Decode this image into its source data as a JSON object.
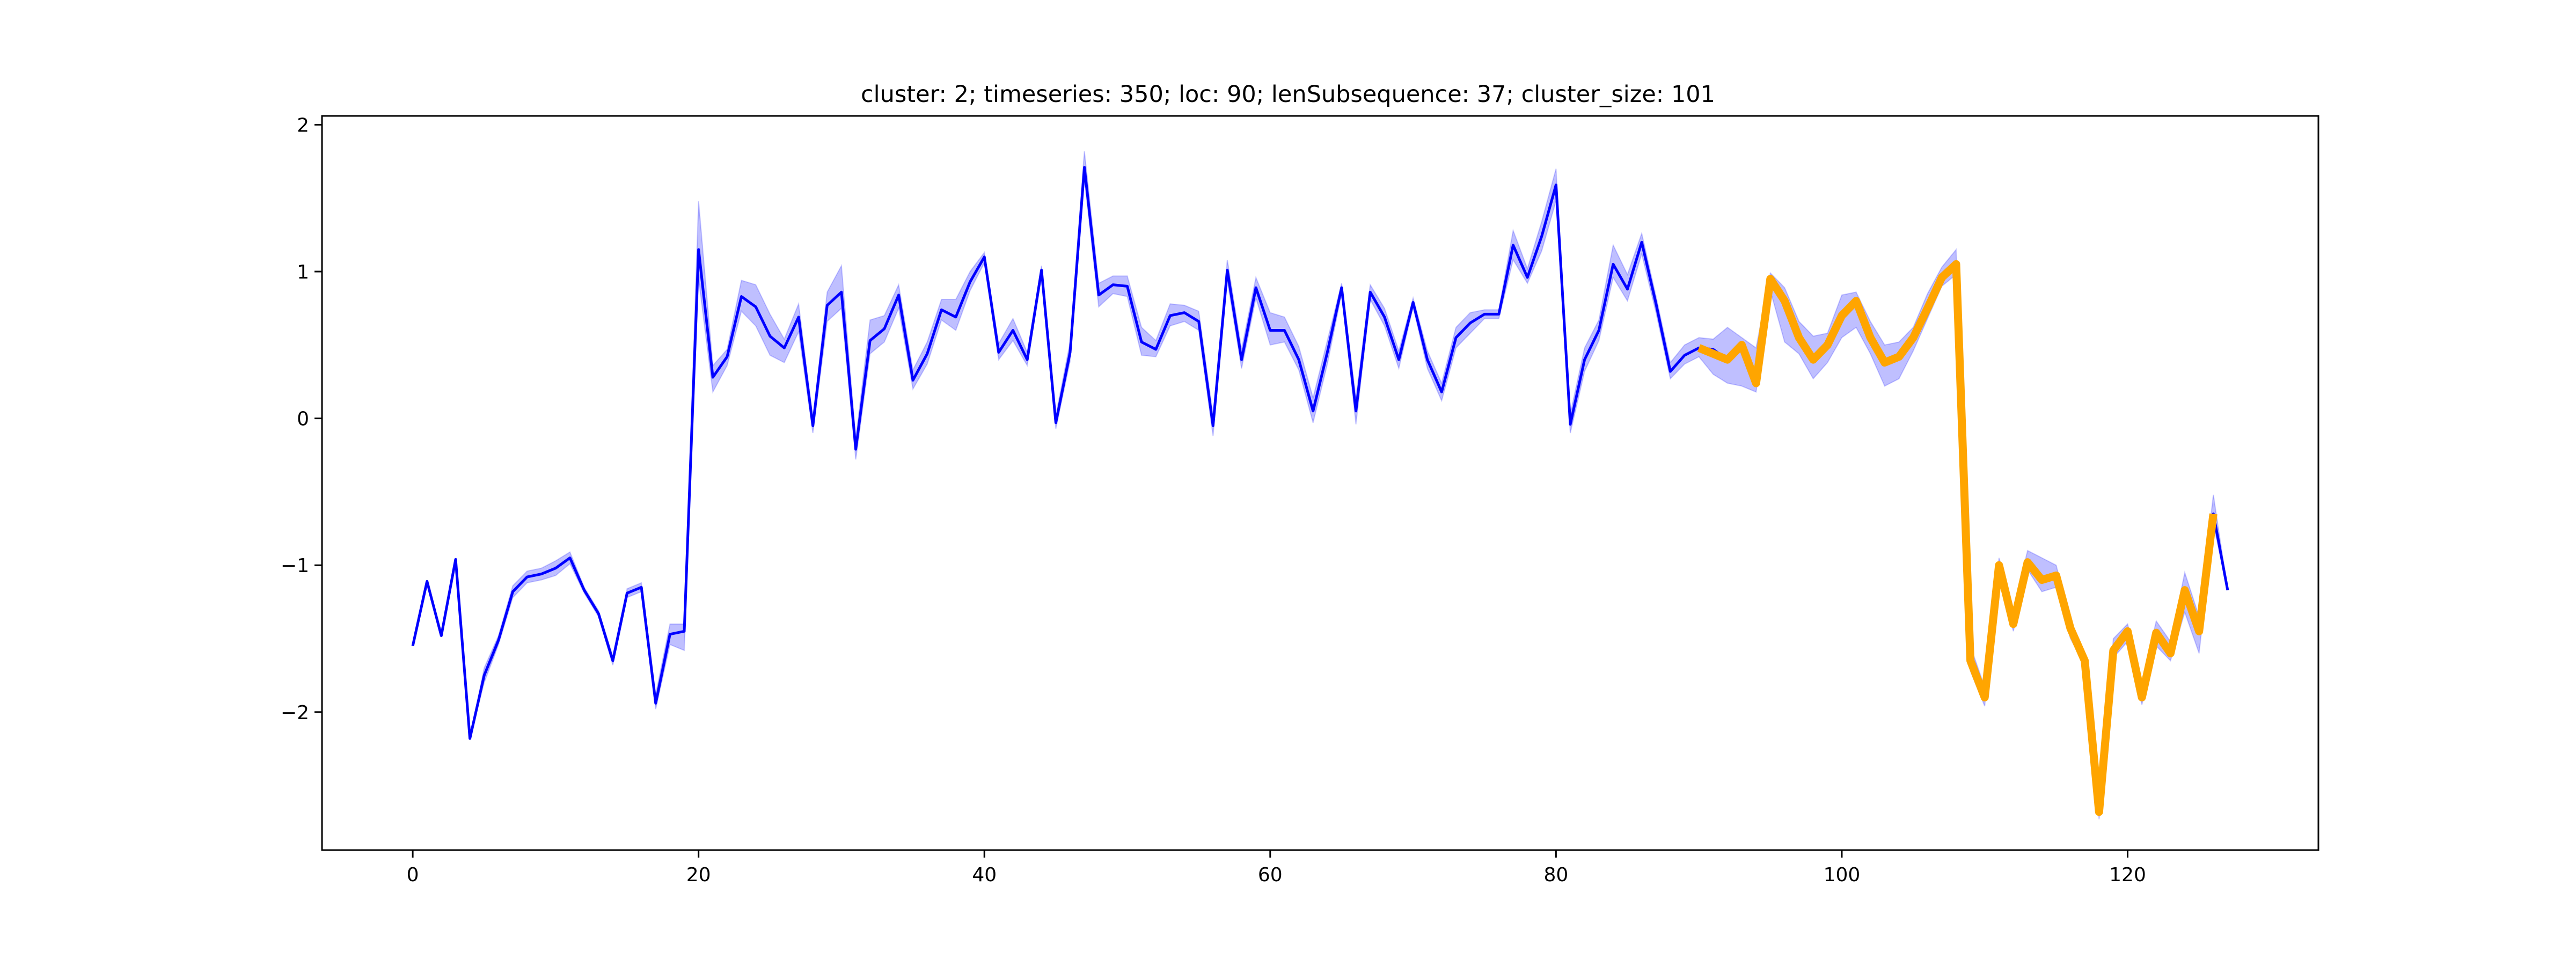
{
  "chart_data": {
    "type": "line",
    "title": "cluster: 2; timeseries: 350; loc: 90; lenSubsequence: 37; cluster_size: 101",
    "xlabel": "",
    "ylabel": "",
    "xlim": [
      -6.35,
      133.35
    ],
    "ylim": [
      -2.94,
      2.06
    ],
    "xticks": [
      0,
      20,
      40,
      60,
      80,
      100,
      120
    ],
    "yticks": [
      -2,
      -1,
      0,
      1,
      2
    ],
    "xtick_labels": [
      "0",
      "20",
      "40",
      "60",
      "80",
      "100",
      "120"
    ],
    "ytick_labels": [
      "−2",
      "−1",
      "0",
      "1",
      "2"
    ],
    "grid": false,
    "series": [
      {
        "role": "mean",
        "color": "#0000ff",
        "x_start": 0,
        "values": [
          -1.55,
          -1.11,
          -1.48,
          -0.96,
          -2.18,
          -1.75,
          -1.51,
          -1.18,
          -1.08,
          -1.06,
          -1.02,
          -0.95,
          -1.17,
          -1.33,
          -1.65,
          -1.19,
          -1.15,
          -1.94,
          -1.47,
          -1.45,
          1.15,
          0.28,
          0.42,
          0.83,
          0.76,
          0.56,
          0.48,
          0.69,
          -0.05,
          0.77,
          0.86,
          -0.21,
          0.53,
          0.61,
          0.84,
          0.26,
          0.44,
          0.74,
          0.69,
          0.93,
          1.1,
          0.45,
          0.6,
          0.4,
          1.01,
          -0.03,
          0.45,
          1.71,
          0.84,
          0.91,
          0.9,
          0.52,
          0.47,
          0.7,
          0.72,
          0.66,
          -0.05,
          1.01,
          0.4,
          0.89,
          0.6,
          0.6,
          0.4,
          0.05,
          0.45,
          0.89,
          0.05,
          0.86,
          0.69,
          0.4,
          0.79,
          0.4,
          0.18,
          0.55,
          0.65,
          0.71,
          0.71,
          1.18,
          0.96,
          1.24,
          1.59,
          -0.04,
          0.4,
          0.6,
          1.05,
          0.88,
          1.2,
          0.78,
          0.32,
          0.43,
          0.48,
          0.47,
          0.4,
          0.5,
          0.24,
          0.95,
          0.8,
          0.55,
          0.4,
          0.5,
          0.7,
          0.8,
          0.55,
          0.38,
          0.42,
          0.55,
          0.75,
          0.96,
          1.05,
          -1.65,
          -1.9,
          -1.0,
          -1.4,
          -0.98,
          -1.1,
          -1.07,
          -1.43,
          -1.65,
          -2.68,
          -1.58,
          -1.45,
          -1.9,
          -1.46,
          -1.6,
          -1.17,
          -1.45,
          -0.65,
          -1.17
        ]
      },
      {
        "role": "band",
        "color": "#0000ff",
        "opacity": 0.25,
        "x_start": 0,
        "upper": [
          -1.55,
          -1.11,
          -1.48,
          -0.96,
          -2.18,
          -1.7,
          -1.48,
          -1.14,
          -1.04,
          -1.02,
          -0.97,
          -0.91,
          -1.15,
          -1.31,
          -1.62,
          -1.16,
          -1.12,
          -1.88,
          -1.4,
          -1.4,
          1.48,
          0.36,
          0.47,
          0.94,
          0.91,
          0.71,
          0.54,
          0.78,
          0.0,
          0.86,
          1.04,
          -0.14,
          0.67,
          0.7,
          0.91,
          0.33,
          0.52,
          0.81,
          0.81,
          1.0,
          1.13,
          0.51,
          0.68,
          0.45,
          1.04,
          0.02,
          0.52,
          1.82,
          0.92,
          0.97,
          0.97,
          0.62,
          0.53,
          0.78,
          0.77,
          0.73,
          0.02,
          1.08,
          0.47,
          0.96,
          0.72,
          0.69,
          0.49,
          0.14,
          0.53,
          0.92,
          0.14,
          0.91,
          0.75,
          0.46,
          0.82,
          0.46,
          0.24,
          0.62,
          0.72,
          0.74,
          0.74,
          1.28,
          1.02,
          1.34,
          1.7,
          0.03,
          0.48,
          0.67,
          1.18,
          0.98,
          1.26,
          0.83,
          0.38,
          0.5,
          0.55,
          0.54,
          0.62,
          0.55,
          0.48,
          0.99,
          0.89,
          0.66,
          0.56,
          0.58,
          0.84,
          0.86,
          0.66,
          0.5,
          0.52,
          0.62,
          0.85,
          1.03,
          1.15,
          -1.55,
          -1.83,
          -0.95,
          -1.3,
          -0.9,
          -0.95,
          -1.0,
          -1.38,
          -1.6,
          -2.6,
          -1.5,
          -1.4,
          -1.8,
          -1.38,
          -1.52,
          -1.05,
          -1.35,
          -0.52,
          -1.17
        ],
        "lower": [
          -1.55,
          -1.11,
          -1.48,
          -0.96,
          -2.18,
          -1.8,
          -1.54,
          -1.22,
          -1.12,
          -1.1,
          -1.07,
          -0.99,
          -1.19,
          -1.35,
          -1.68,
          -1.22,
          -1.18,
          -1.98,
          -1.54,
          -1.58,
          0.95,
          0.18,
          0.36,
          0.73,
          0.63,
          0.43,
          0.38,
          0.59,
          -0.1,
          0.66,
          0.75,
          -0.28,
          0.44,
          0.52,
          0.75,
          0.2,
          0.37,
          0.67,
          0.6,
          0.87,
          1.06,
          0.4,
          0.53,
          0.36,
          0.97,
          -0.07,
          0.39,
          1.63,
          0.76,
          0.85,
          0.83,
          0.43,
          0.42,
          0.63,
          0.66,
          0.6,
          -0.12,
          0.94,
          0.34,
          0.82,
          0.5,
          0.52,
          0.33,
          -0.03,
          0.37,
          0.85,
          -0.04,
          0.81,
          0.63,
          0.34,
          0.76,
          0.34,
          0.12,
          0.48,
          0.58,
          0.68,
          0.68,
          1.08,
          0.92,
          1.14,
          1.48,
          -0.1,
          0.32,
          0.53,
          0.96,
          0.8,
          1.12,
          0.72,
          0.27,
          0.37,
          0.42,
          0.3,
          0.24,
          0.22,
          0.18,
          0.87,
          0.52,
          0.44,
          0.27,
          0.38,
          0.55,
          0.62,
          0.44,
          0.22,
          0.27,
          0.46,
          0.68,
          0.9,
          0.98,
          -1.72,
          -1.96,
          -1.05,
          -1.45,
          -1.03,
          -1.18,
          -1.15,
          -1.5,
          -1.68,
          -2.73,
          -1.63,
          -1.52,
          -1.95,
          -1.55,
          -1.65,
          -1.32,
          -1.6,
          -0.72,
          -1.17
        ]
      },
      {
        "role": "subsequence",
        "color": "#ffa500",
        "x_start": 90,
        "values": [
          0.48,
          0.44,
          0.4,
          0.5,
          0.24,
          0.95,
          0.8,
          0.55,
          0.4,
          0.5,
          0.7,
          0.8,
          0.55,
          0.38,
          0.42,
          0.55,
          0.75,
          0.96,
          1.05,
          -1.65,
          -1.9,
          -1.0,
          -1.4,
          -0.98,
          -1.1,
          -1.07,
          -1.43,
          -1.65,
          -2.68,
          -1.58,
          -1.45,
          -1.9,
          -1.46,
          -1.6,
          -1.17,
          -1.45,
          -0.65
        ]
      }
    ]
  }
}
